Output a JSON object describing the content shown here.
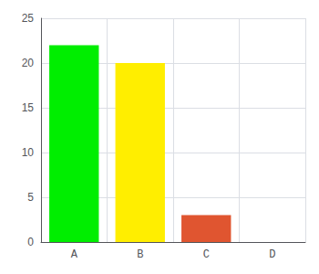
{
  "chart_data": {
    "type": "bar",
    "categories": [
      "A",
      "B",
      "C",
      "D"
    ],
    "values": [
      22,
      20,
      3,
      0
    ],
    "colors": [
      "#00ee00",
      "#ffee00",
      "#e05530",
      "#e05530"
    ],
    "ylim": [
      0,
      25
    ],
    "yticks": [
      0,
      5,
      10,
      15,
      20,
      25
    ],
    "grid": true
  }
}
